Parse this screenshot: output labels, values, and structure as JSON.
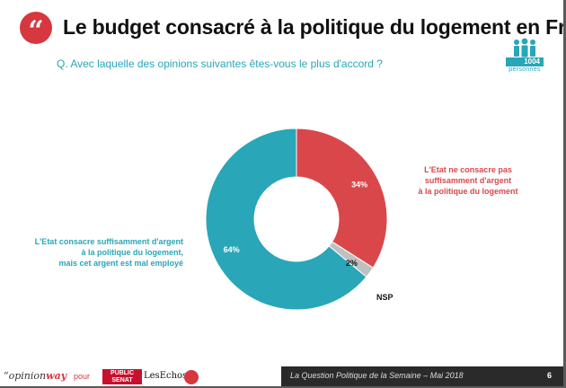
{
  "header": {
    "quote_glyph": "“",
    "title": "Le budget consacré à la politique du logement en France",
    "question": "Q. Avec laquelle des opinions suivantes êtes-vous le plus d'accord ?",
    "sample_size": "1004",
    "sample_unit": "personnes"
  },
  "chart_data": {
    "type": "pie",
    "donut": true,
    "slices": [
      {
        "label": [
          "L'Etat ne consacre pas",
          "suffisamment d'argent",
          "à la politique du logement"
        ],
        "value": 34,
        "value_label": "34%",
        "color": "#d9474b"
      },
      {
        "label": [
          "NSP"
        ],
        "value": 2,
        "value_label": "2%",
        "color": "#bfc0c0"
      },
      {
        "label": [
          "L'Etat consacre suffisamment d'argent",
          "à la politique du logement,",
          "mais cet argent est mal employé"
        ],
        "value": 64,
        "value_label": "64%",
        "color": "#29a6b7"
      }
    ]
  },
  "footer": {
    "brand_pre": "“opinion",
    "brand_post": "way",
    "pour": "pour",
    "partner_1a": "PUBLIC",
    "partner_1b": "SENAT",
    "partner_2": "LesEchos",
    "caption": "La Question Politique de la Semaine – Mai 2018",
    "page": "6"
  }
}
